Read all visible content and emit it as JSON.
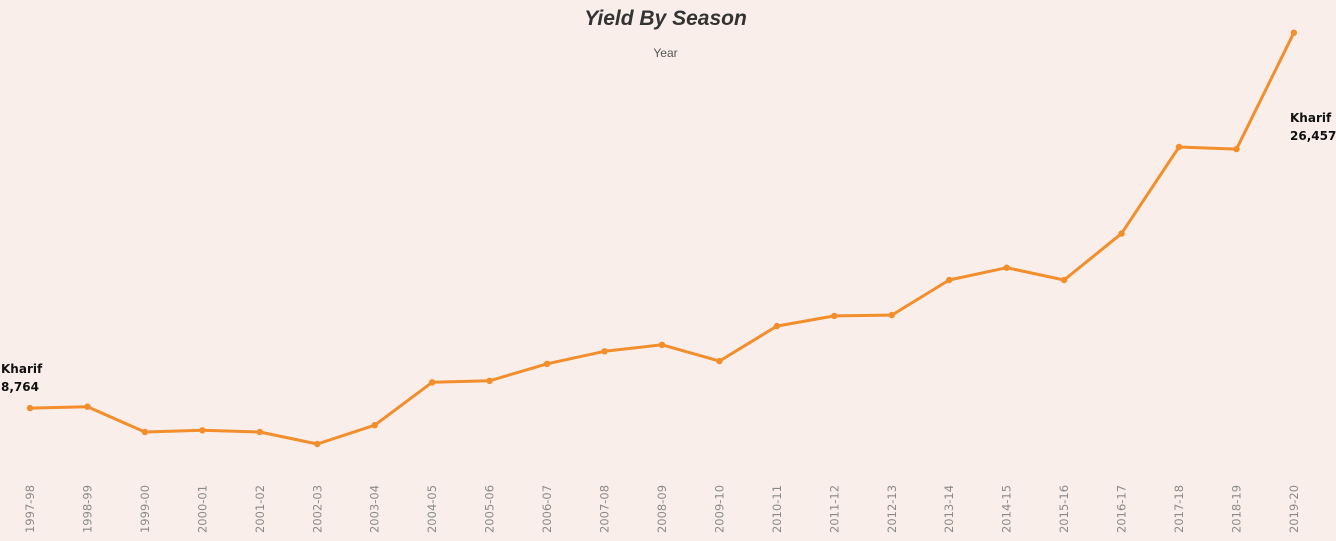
{
  "header": {
    "title": "Yield By Season",
    "column_header": "Year"
  },
  "chart_data": {
    "type": "line",
    "title": "Yield By Season",
    "xlabel": "Year",
    "ylabel": "",
    "categories": [
      "1997-98",
      "1998-99",
      "1999-00",
      "2000-01",
      "2001-02",
      "2002-03",
      "2003-04",
      "2004-05",
      "2005-06",
      "2006-07",
      "2007-08",
      "2008-09",
      "2009-10",
      "2010-11",
      "2011-12",
      "2012-13",
      "2013-14",
      "2014-15",
      "2015-16",
      "2016-17",
      "2017-18",
      "2018-19",
      "2019-20"
    ],
    "series": [
      {
        "name": "Kharif",
        "color": "#f28e2b",
        "values": [
          8764,
          8830,
          7640,
          7720,
          7640,
          7070,
          7960,
          9980,
          10050,
          10850,
          11440,
          11750,
          10980,
          12630,
          13110,
          13150,
          14800,
          15380,
          14800,
          16990,
          21070,
          20970,
          26457
        ]
      }
    ],
    "start_label": {
      "series": "Kharif",
      "value": "8,764"
    },
    "end_label": {
      "series": "Kharif",
      "value": "26,457"
    },
    "ylim": [
      2500,
      28000
    ],
    "grid": false,
    "y_axis_visible": false
  }
}
